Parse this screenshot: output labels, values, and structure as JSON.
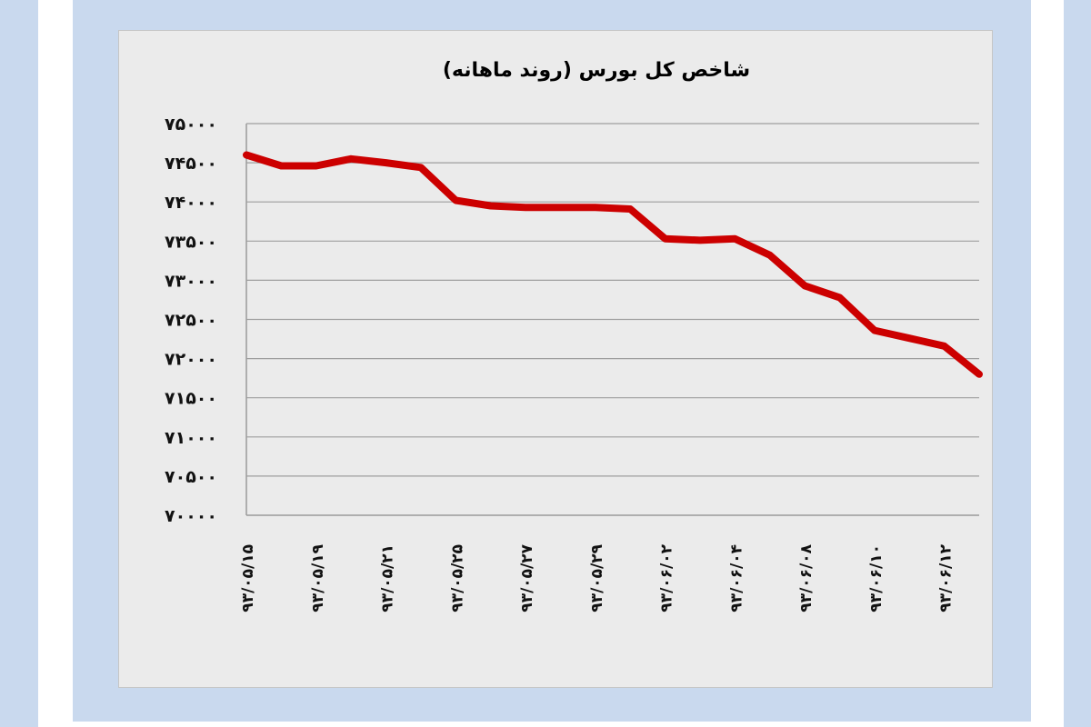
{
  "chart_data": {
    "type": "line",
    "title": "شاخص کل بورس (روند ماهانه)",
    "xlabel": "",
    "ylabel": "",
    "ylim": [
      70000,
      75000
    ],
    "y_ticks": [
      75000,
      74500,
      74000,
      73500,
      73000,
      72500,
      72000,
      71500,
      71000,
      70500,
      70000
    ],
    "y_tick_labels": [
      "۷۵۰۰۰",
      "۷۴۵۰۰",
      "۷۴۰۰۰",
      "۷۳۵۰۰",
      "۷۳۰۰۰",
      "۷۲۵۰۰",
      "۷۲۰۰۰",
      "۷۱۵۰۰",
      "۷۱۰۰۰",
      "۷۰۵۰۰",
      "۷۰۰۰۰"
    ],
    "x_tick_labels": [
      "۹۳/۰۵/۱۵",
      "۹۳/۰۵/۱۹",
      "۹۳/۰۵/۲۱",
      "۹۳/۰۵/۲۵",
      "۹۳/۰۵/۲۷",
      "۹۳/۰۵/۲۹",
      "۹۳/۰۶/۰۲",
      "۹۳/۰۶/۰۴",
      "۹۳/۰۶/۰۸",
      "۹۳/۰۶/۱۰",
      "۹۳/۰۶/۱۲"
    ],
    "grid": true,
    "legend": "none",
    "line_color": "#cc0000",
    "series": [
      {
        "x": [
          "۹۳/۰۵/۱۵",
          "",
          "۹۳/۰۵/۱۹",
          "",
          "۹۳/۰۵/۲۱",
          "",
          "۹۳/۰۵/۲۵",
          "",
          "۹۳/۰۵/۲۷",
          "",
          "۹۳/۰۵/۲۹",
          "",
          "۹۳/۰۶/۰۲",
          "",
          "۹۳/۰۶/۰۴",
          "",
          "۹۳/۰۶/۰۸",
          "",
          "۹۳/۰۶/۱۰",
          "",
          "۹۳/۰۶/۱۲",
          ""
        ],
        "values": [
          74600,
          74460,
          74460,
          74550,
          74500,
          74440,
          74020,
          73950,
          73930,
          73930,
          73930,
          73910,
          73530,
          73510,
          73530,
          73320,
          72930,
          72780,
          72360,
          72260,
          72160,
          71800
        ]
      }
    ]
  }
}
